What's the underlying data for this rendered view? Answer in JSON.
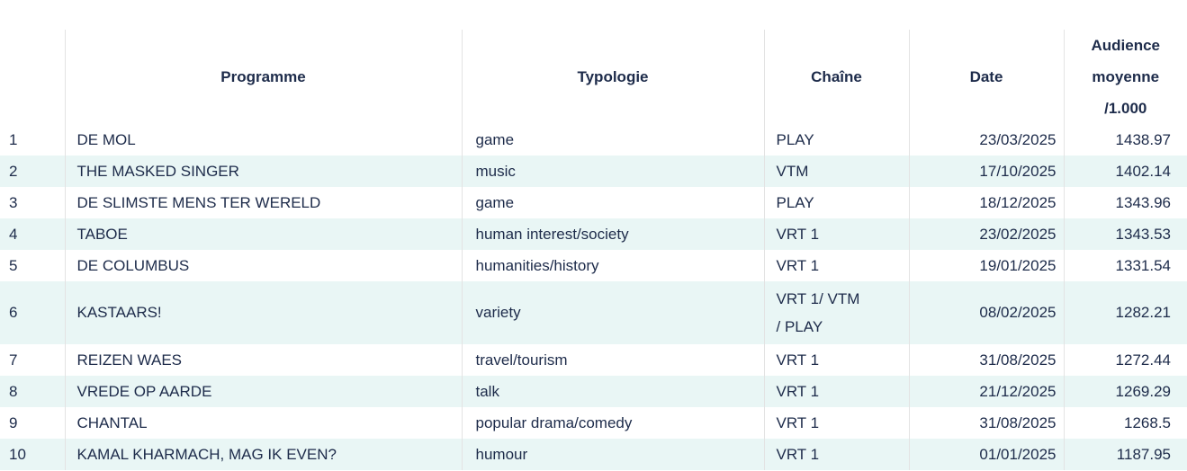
{
  "colors": {
    "text": "#1d2b4a",
    "row_alt_bg": "#e9f6f5",
    "border": "#e3e3e3",
    "background": "#ffffff"
  },
  "table": {
    "headers": {
      "rank": "",
      "programme": "Programme",
      "typologie": "Typologie",
      "chaine": "Chaîne",
      "date": "Date",
      "audience_lines": [
        "Audience",
        "moyenne",
        "/1.000"
      ]
    },
    "rows": [
      {
        "rank": "1",
        "programme": "DE MOL",
        "typologie": "game",
        "chaine": "PLAY",
        "date": "23/03/2025",
        "audience": "1438.97"
      },
      {
        "rank": "2",
        "programme": "THE MASKED SINGER",
        "typologie": "music",
        "chaine": "VTM",
        "date": "17/10/2025",
        "audience": "1402.14"
      },
      {
        "rank": "3",
        "programme": "DE SLIMSTE MENS TER WERELD",
        "typologie": "game",
        "chaine": "PLAY",
        "date": "18/12/2025",
        "audience": "1343.96"
      },
      {
        "rank": "4",
        "programme": "TABOE",
        "typologie": "human interest/society",
        "chaine": "VRT 1",
        "date": "23/02/2025",
        "audience": "1343.53"
      },
      {
        "rank": "5",
        "programme": "DE COLUMBUS",
        "typologie": "humanities/history",
        "chaine": "VRT 1",
        "date": "19/01/2025",
        "audience": "1331.54"
      },
      {
        "rank": "6",
        "programme": "KASTAARS!",
        "typologie": "variety",
        "chaine": "VRT 1/ VTM\n/ PLAY",
        "date": "08/02/2025",
        "audience": "1282.21"
      },
      {
        "rank": "7",
        "programme": "REIZEN WAES",
        "typologie": "travel/tourism",
        "chaine": "VRT 1",
        "date": "31/08/2025",
        "audience": "1272.44"
      },
      {
        "rank": "8",
        "programme": "VREDE OP AARDE",
        "typologie": "talk",
        "chaine": "VRT 1",
        "date": "21/12/2025",
        "audience": "1269.29"
      },
      {
        "rank": "9",
        "programme": "CHANTAL",
        "typologie": "popular drama/comedy",
        "chaine": "VRT 1",
        "date": "31/08/2025",
        "audience": "1268.5"
      },
      {
        "rank": "10",
        "programme": "KAMAL KHARMACH, MAG IK EVEN?",
        "typologie": "humour",
        "chaine": "VRT 1",
        "date": "01/01/2025",
        "audience": "1187.95"
      }
    ]
  }
}
